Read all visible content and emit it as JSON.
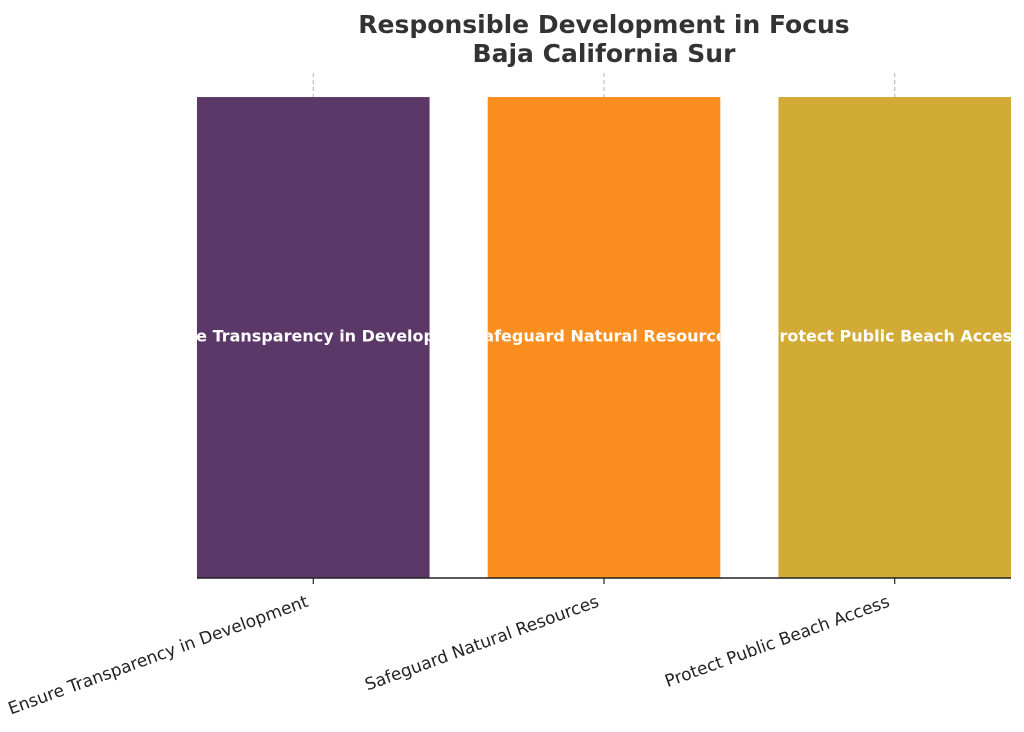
{
  "chart_data": {
    "type": "bar",
    "title": "Responsible Development in Focus",
    "subtitle": "Baja California Sur",
    "categories": [
      "Ensure Transparency in Development",
      "Safeguard Natural Resources",
      "Protect Public Beach Access"
    ],
    "values": [
      1,
      1,
      1
    ],
    "bar_labels": [
      "Ensure Transparency in Development",
      "Safeguard Natural Resources",
      "Protect Public Beach Access"
    ],
    "colors": [
      "#5c3868",
      "#fa8e1e",
      "#d2ab37"
    ],
    "bar_label_color": "#ffffff",
    "xlabel": "",
    "ylabel": "",
    "ylim": [
      0,
      1.05
    ],
    "y_axis_visible": false,
    "grid": "vertical-dashed",
    "legend": "none"
  }
}
